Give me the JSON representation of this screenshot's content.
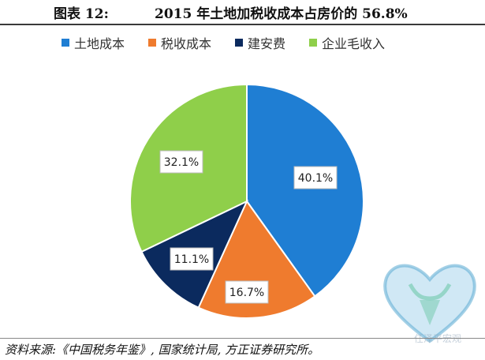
{
  "header": {
    "label": "图表 12:",
    "title": "2015 年土地加税收成本占房价的 56.8%"
  },
  "chart_data": {
    "type": "pie",
    "categories": [
      "土地成本",
      "税收成本",
      "建安费",
      "企业毛收入"
    ],
    "values": [
      40.1,
      16.7,
      11.1,
      32.1
    ],
    "labels": [
      "40.1%",
      "16.7%",
      "11.1%",
      "32.1%"
    ],
    "colors": [
      "#1f7ed3",
      "#ef7b2e",
      "#0b2a5e",
      "#8fcf4a"
    ],
    "legend_position": "top"
  },
  "footer": {
    "source": "资料来源:《中国税务年鉴》, 国家统计局, 方正证券研究所。"
  },
  "watermark": {
    "text": "任泽平宏观"
  }
}
